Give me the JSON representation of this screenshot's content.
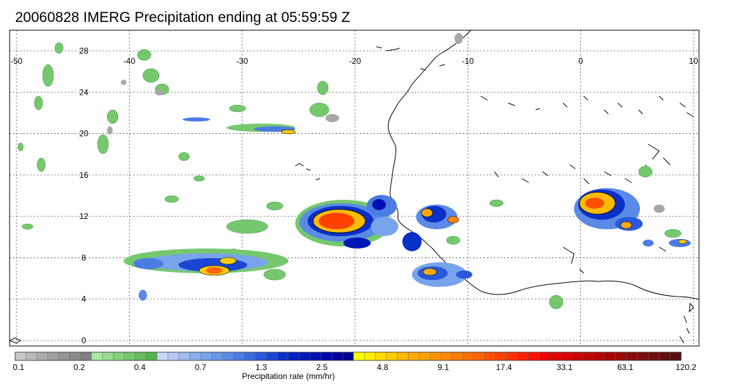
{
  "title": "20060828 IMERG Precipitation ending at 05:59:59 Z",
  "map": {
    "lon_labels": [
      "-50",
      "-40",
      "-30",
      "-20",
      "-10",
      "0",
      "10"
    ],
    "lat_labels": [
      "28",
      "24",
      "20",
      "16",
      "12",
      "8",
      "4",
      "0"
    ],
    "grid": true
  },
  "colorbar": {
    "title": "Precipitation rate (mm/hr)",
    "tick_labels": [
      "0.1",
      "0.2",
      "0.4",
      "0.7",
      "1.3",
      "2.5",
      "4.8",
      "9.1",
      "17.4",
      "33.1",
      "63.1",
      "120.2"
    ],
    "colors": [
      "#c8c8c8",
      "#b9b9b9",
      "#acacac",
      "#a0a0a0",
      "#959595",
      "#8a8a8a",
      "#808080",
      "#a8e6a0",
      "#98dd90",
      "#86d27e",
      "#76c86e",
      "#66bd5e",
      "#56b24e",
      "#c8d8f8",
      "#b4c8f4",
      "#a0bcf0",
      "#8cb0ee",
      "#78a4ec",
      "#6898ea",
      "#5a8ae6",
      "#4a7ce4",
      "#3a6ae0",
      "#2a58dc",
      "#1a46d4",
      "#0a30c8",
      "#0020c0",
      "#0018b8",
      "#0010b0",
      "#0008a8",
      "#0000a0",
      "#000098",
      "#ffff00",
      "#ffee00",
      "#ffdd00",
      "#ffcc00",
      "#ffbb00",
      "#ffaa00",
      "#ffa000",
      "#ff9400",
      "#ff8800",
      "#ff7c00",
      "#ff7000",
      "#ff6400",
      "#ff5000",
      "#ff4000",
      "#ff3000",
      "#ff2000",
      "#ff1000",
      "#f00000",
      "#e40000",
      "#d80000",
      "#cc0000",
      "#c00000",
      "#b40000",
      "#a80000",
      "#9a0808",
      "#8c0a0a",
      "#7e0c0c",
      "#700e0e",
      "#620e0e",
      "#541010"
    ]
  }
}
